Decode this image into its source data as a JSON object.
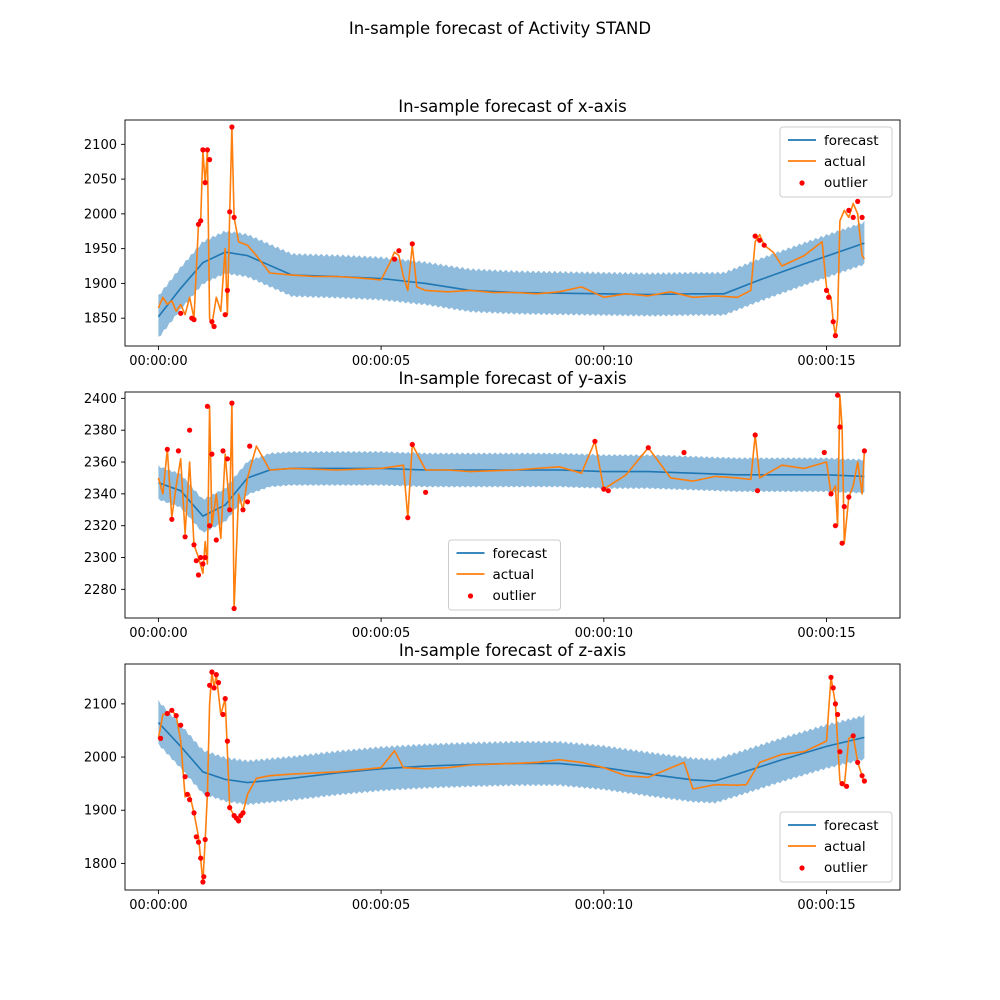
{
  "figure": {
    "title": "In-sample forecast of Activity STAND"
  },
  "legend_labels": [
    "forecast",
    "actual",
    "outlier"
  ],
  "colors": {
    "forecast": "#1f77b4",
    "band": "#8fbbdc",
    "actual": "#ff7f0e",
    "outlier": "#ff0000"
  },
  "chart_data": [
    {
      "type": "line",
      "title": "In-sample forecast of x-axis",
      "xlabel": "",
      "ylabel": "",
      "x_unit": "seconds",
      "xlim": [
        -0.75,
        16.65
      ],
      "ylim": [
        1810,
        2135
      ],
      "x_ticks": [
        0,
        5,
        10,
        15
      ],
      "x_tick_labels": [
        "00:00:00",
        "00:00:05",
        "00:00:10",
        "00:00:15"
      ],
      "y_ticks": [
        1850,
        1900,
        1950,
        2000,
        2050,
        2100
      ],
      "legend_position": "upper right",
      "forecast": {
        "x": [
          0,
          0.5,
          1.0,
          1.5,
          2.0,
          3.0,
          4.0,
          5.0,
          6.0,
          7.0,
          8.0,
          9.0,
          10.0,
          11.0,
          12.0,
          12.7,
          13.5,
          14.5,
          15.85
        ],
        "y": [
          1852,
          1893,
          1930,
          1945,
          1940,
          1912,
          1910,
          1907,
          1900,
          1890,
          1887,
          1886,
          1885,
          1884,
          1885,
          1885,
          1905,
          1928,
          1958
        ]
      },
      "band_halfwidth": 32,
      "actual": {
        "x": [
          0,
          0.1,
          0.2,
          0.3,
          0.4,
          0.5,
          0.6,
          0.7,
          0.8,
          0.9,
          0.95,
          1.0,
          1.05,
          1.1,
          1.15,
          1.2,
          1.3,
          1.4,
          1.5,
          1.55,
          1.6,
          1.65,
          1.7,
          1.8,
          2.0,
          2.2,
          2.5,
          3.0,
          3.5,
          4.0,
          4.5,
          5.0,
          5.2,
          5.3,
          5.4,
          5.5,
          5.6,
          5.7,
          5.8,
          6.0,
          6.5,
          7.0,
          7.5,
          8.0,
          8.5,
          9.0,
          9.5,
          10.0,
          10.5,
          11.0,
          11.5,
          12.0,
          12.5,
          13.0,
          13.3,
          13.4,
          13.5,
          13.6,
          13.8,
          14.0,
          14.5,
          14.9,
          15.0,
          15.05,
          15.1,
          15.15,
          15.2,
          15.25,
          15.3,
          15.4,
          15.5,
          15.6,
          15.7,
          15.8,
          15.85
        ],
        "y": [
          1865,
          1880,
          1870,
          1875,
          1860,
          1870,
          1855,
          1880,
          1850,
          1985,
          1990,
          2090,
          2045,
          2090,
          1850,
          1840,
          1880,
          1860,
          1950,
          1855,
          2000,
          2125,
          1995,
          1960,
          1955,
          1940,
          1915,
          1912,
          1910,
          1910,
          1908,
          1905,
          1930,
          1945,
          1940,
          1910,
          1890,
          1955,
          1895,
          1890,
          1888,
          1890,
          1887,
          1887,
          1885,
          1888,
          1895,
          1880,
          1885,
          1882,
          1888,
          1880,
          1882,
          1880,
          1890,
          1960,
          1970,
          1955,
          1945,
          1925,
          1940,
          1960,
          1895,
          1885,
          1880,
          1845,
          1825,
          1850,
          1990,
          2005,
          1995,
          2015,
          2000,
          1940,
          1935
        ]
      },
      "outliers": {
        "x": [
          0.5,
          0.75,
          0.8,
          0.9,
          0.95,
          1.0,
          1.05,
          1.1,
          1.15,
          1.2,
          1.25,
          1.5,
          1.55,
          1.6,
          1.65,
          1.7,
          5.3,
          5.4,
          5.7,
          13.4,
          13.5,
          13.6,
          15.0,
          15.05,
          15.15,
          15.2,
          15.5,
          15.6,
          15.7,
          15.8
        ],
        "y": [
          1857,
          1850,
          1848,
          1985,
          1990,
          2092,
          2045,
          2092,
          2078,
          1845,
          1838,
          1855,
          1890,
          2003,
          2125,
          1995,
          1935,
          1947,
          1957,
          1968,
          1962,
          1955,
          1890,
          1880,
          1845,
          1825,
          2005,
          1995,
          2018,
          1995
        ]
      }
    },
    {
      "type": "line",
      "title": "In-sample forecast of y-axis",
      "xlabel": "",
      "ylabel": "",
      "x_unit": "seconds",
      "xlim": [
        -0.75,
        16.65
      ],
      "ylim": [
        2262,
        2404
      ],
      "x_ticks": [
        0,
        5,
        10,
        15
      ],
      "x_tick_labels": [
        "00:00:00",
        "00:00:05",
        "00:00:10",
        "00:00:15"
      ],
      "y_ticks": [
        2280,
        2300,
        2320,
        2340,
        2360,
        2380,
        2400
      ],
      "legend_position": "lower center",
      "forecast": {
        "x": [
          0,
          0.5,
          1.0,
          1.5,
          2.0,
          2.5,
          3.0,
          4.0,
          5.0,
          6.0,
          7.0,
          8.0,
          9.0,
          10.0,
          11.0,
          12.0,
          13.0,
          14.0,
          15.0,
          15.85
        ],
        "y": [
          2347,
          2342,
          2326,
          2333,
          2350,
          2355,
          2356,
          2356,
          2356,
          2355,
          2355,
          2355,
          2355,
          2354,
          2354,
          2353,
          2352,
          2352,
          2352,
          2351
        ]
      },
      "band_halfwidth": 11,
      "actual": {
        "x": [
          0,
          0.1,
          0.2,
          0.3,
          0.4,
          0.5,
          0.6,
          0.7,
          0.8,
          0.9,
          1.0,
          1.05,
          1.1,
          1.15,
          1.2,
          1.3,
          1.4,
          1.5,
          1.6,
          1.65,
          1.7,
          1.8,
          1.9,
          2.0,
          2.2,
          2.5,
          3.0,
          4.0,
          5.0,
          5.5,
          5.6,
          5.7,
          6.0,
          6.5,
          7.0,
          8.0,
          9.0,
          9.5,
          9.8,
          10.0,
          10.5,
          11.0,
          11.5,
          12.0,
          12.5,
          13.0,
          13.3,
          13.4,
          13.5,
          14.0,
          14.5,
          15.0,
          15.1,
          15.2,
          15.25,
          15.3,
          15.35,
          15.4,
          15.5,
          15.6,
          15.7,
          15.8,
          15.85
        ],
        "y": [
          2350,
          2340,
          2368,
          2325,
          2345,
          2362,
          2315,
          2360,
          2308,
          2300,
          2290,
          2310,
          2296,
          2395,
          2320,
          2340,
          2312,
          2365,
          2330,
          2397,
          2268,
          2340,
          2330,
          2350,
          2370,
          2355,
          2356,
          2355,
          2356,
          2358,
          2325,
          2371,
          2355,
          2355,
          2354,
          2355,
          2357,
          2353,
          2373,
          2343,
          2352,
          2369,
          2350,
          2348,
          2351,
          2350,
          2349,
          2377,
          2350,
          2358,
          2356,
          2360,
          2340,
          2345,
          2320,
          2402,
          2382,
          2309,
          2338,
          2345,
          2360,
          2340,
          2367
        ]
      },
      "outliers": {
        "x": [
          0.2,
          0.3,
          0.45,
          0.6,
          0.7,
          0.8,
          0.85,
          0.9,
          0.95,
          1.0,
          1.05,
          1.1,
          1.15,
          1.2,
          1.3,
          1.45,
          1.55,
          1.6,
          1.65,
          1.7,
          1.9,
          2.0,
          2.05,
          5.6,
          5.7,
          6.0,
          9.8,
          10.0,
          10.1,
          11.0,
          11.8,
          13.4,
          13.45,
          14.95,
          15.1,
          15.2,
          15.25,
          15.3,
          15.35,
          15.4,
          15.5,
          15.85
        ],
        "y": [
          2368,
          2324,
          2367,
          2313,
          2380,
          2308,
          2298,
          2289,
          2300,
          2296,
          2300,
          2395,
          2320,
          2365,
          2311,
          2367,
          2362,
          2330,
          2397,
          2268,
          2330,
          2335,
          2370,
          2325,
          2371,
          2341,
          2373,
          2343,
          2342,
          2369,
          2366,
          2377,
          2342,
          2366,
          2340,
          2320,
          2402,
          2382,
          2309,
          2332,
          2338,
          2367
        ]
      }
    },
    {
      "type": "line",
      "title": "In-sample forecast of z-axis",
      "xlabel": "",
      "ylabel": "",
      "x_unit": "seconds",
      "xlim": [
        -0.75,
        16.65
      ],
      "ylim": [
        1750,
        2175
      ],
      "x_ticks": [
        0,
        5,
        10,
        15
      ],
      "x_tick_labels": [
        "00:00:00",
        "00:00:05",
        "00:00:10",
        "00:00:15"
      ],
      "y_ticks": [
        1800,
        1900,
        2000,
        2100
      ],
      "legend_position": "lower right",
      "forecast": {
        "x": [
          0,
          0.5,
          1.0,
          1.5,
          2.0,
          3.0,
          4.0,
          5.0,
          6.0,
          7.0,
          8.0,
          9.0,
          10.0,
          11.0,
          12.0,
          12.5,
          13.0,
          14.0,
          15.0,
          15.85
        ],
        "y": [
          2065,
          2020,
          1972,
          1958,
          1952,
          1960,
          1970,
          1978,
          1983,
          1986,
          1988,
          1988,
          1980,
          1968,
          1957,
          1955,
          1968,
          1995,
          2020,
          2037
        ]
      },
      "band_halfwidth": 43,
      "actual": {
        "x": [
          0,
          0.1,
          0.2,
          0.3,
          0.4,
          0.5,
          0.6,
          0.7,
          0.8,
          0.9,
          1.0,
          1.05,
          1.1,
          1.15,
          1.2,
          1.25,
          1.3,
          1.4,
          1.5,
          1.6,
          1.7,
          1.8,
          1.9,
          2.0,
          2.2,
          2.5,
          3.0,
          4.0,
          5.0,
          5.3,
          5.5,
          6.0,
          6.5,
          7.0,
          8.0,
          8.5,
          9.0,
          9.5,
          10.0,
          10.5,
          11.0,
          11.8,
          12.0,
          12.5,
          13.0,
          13.2,
          13.5,
          14.0,
          14.5,
          15.0,
          15.1,
          15.2,
          15.3,
          15.4,
          15.5,
          15.6,
          15.7,
          15.8,
          15.85
        ],
        "y": [
          2035,
          2080,
          2082,
          2088,
          2078,
          2030,
          1925,
          1930,
          1895,
          1850,
          1765,
          1845,
          1930,
          2100,
          2160,
          2130,
          2155,
          2080,
          2110,
          1905,
          1890,
          1880,
          1895,
          1930,
          1960,
          1965,
          1968,
          1972,
          1980,
          2012,
          1980,
          1978,
          1980,
          1985,
          1988,
          1990,
          1995,
          1990,
          1980,
          1965,
          1962,
          1990,
          1940,
          1948,
          1947,
          1948,
          1990,
          2005,
          2010,
          2030,
          2150,
          2100,
          1955,
          1945,
          2035,
          2040,
          1990,
          1965,
          1950
        ]
      },
      "outliers": {
        "x": [
          0.05,
          0.2,
          0.3,
          0.4,
          0.5,
          0.6,
          0.65,
          0.7,
          0.8,
          0.85,
          0.9,
          0.95,
          1.0,
          1.02,
          1.05,
          1.1,
          1.15,
          1.2,
          1.25,
          1.3,
          1.35,
          1.45,
          1.5,
          1.55,
          1.6,
          1.7,
          1.75,
          1.8,
          1.85,
          1.9,
          15.1,
          15.15,
          15.2,
          15.25,
          15.3,
          15.35,
          15.45,
          15.6,
          15.7,
          15.8,
          15.85
        ],
        "y": [
          2035,
          2082,
          2088,
          2078,
          2060,
          1963,
          1930,
          1920,
          1895,
          1850,
          1840,
          1810,
          1765,
          1775,
          1845,
          1930,
          2135,
          2160,
          2130,
          2155,
          2140,
          2080,
          2110,
          2030,
          1905,
          1890,
          1885,
          1880,
          1890,
          1895,
          2150,
          2130,
          2100,
          2080,
          2010,
          1950,
          1945,
          2040,
          1990,
          1965,
          1955
        ]
      }
    }
  ]
}
